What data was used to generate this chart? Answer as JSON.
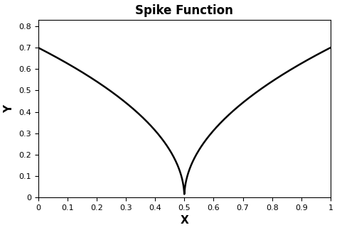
{
  "title": "Spike Function",
  "xlabel": "X",
  "ylabel": "Y",
  "xlim": [
    0,
    1
  ],
  "ylim": [
    0,
    0.83
  ],
  "xticks": [
    0,
    0.1,
    0.2,
    0.3,
    0.4,
    0.5,
    0.6,
    0.7,
    0.8,
    0.9,
    1
  ],
  "yticks": [
    0,
    0.1,
    0.2,
    0.3,
    0.4,
    0.5,
    0.6,
    0.7,
    0.8
  ],
  "line_color": "#000000",
  "line_width": 1.8,
  "background_color": "#ffffff",
  "title_fontsize": 12,
  "title_fontweight": "bold",
  "label_fontsize": 11,
  "label_fontweight": "bold",
  "spike_scale": 0.99,
  "spike_power": 0.5
}
